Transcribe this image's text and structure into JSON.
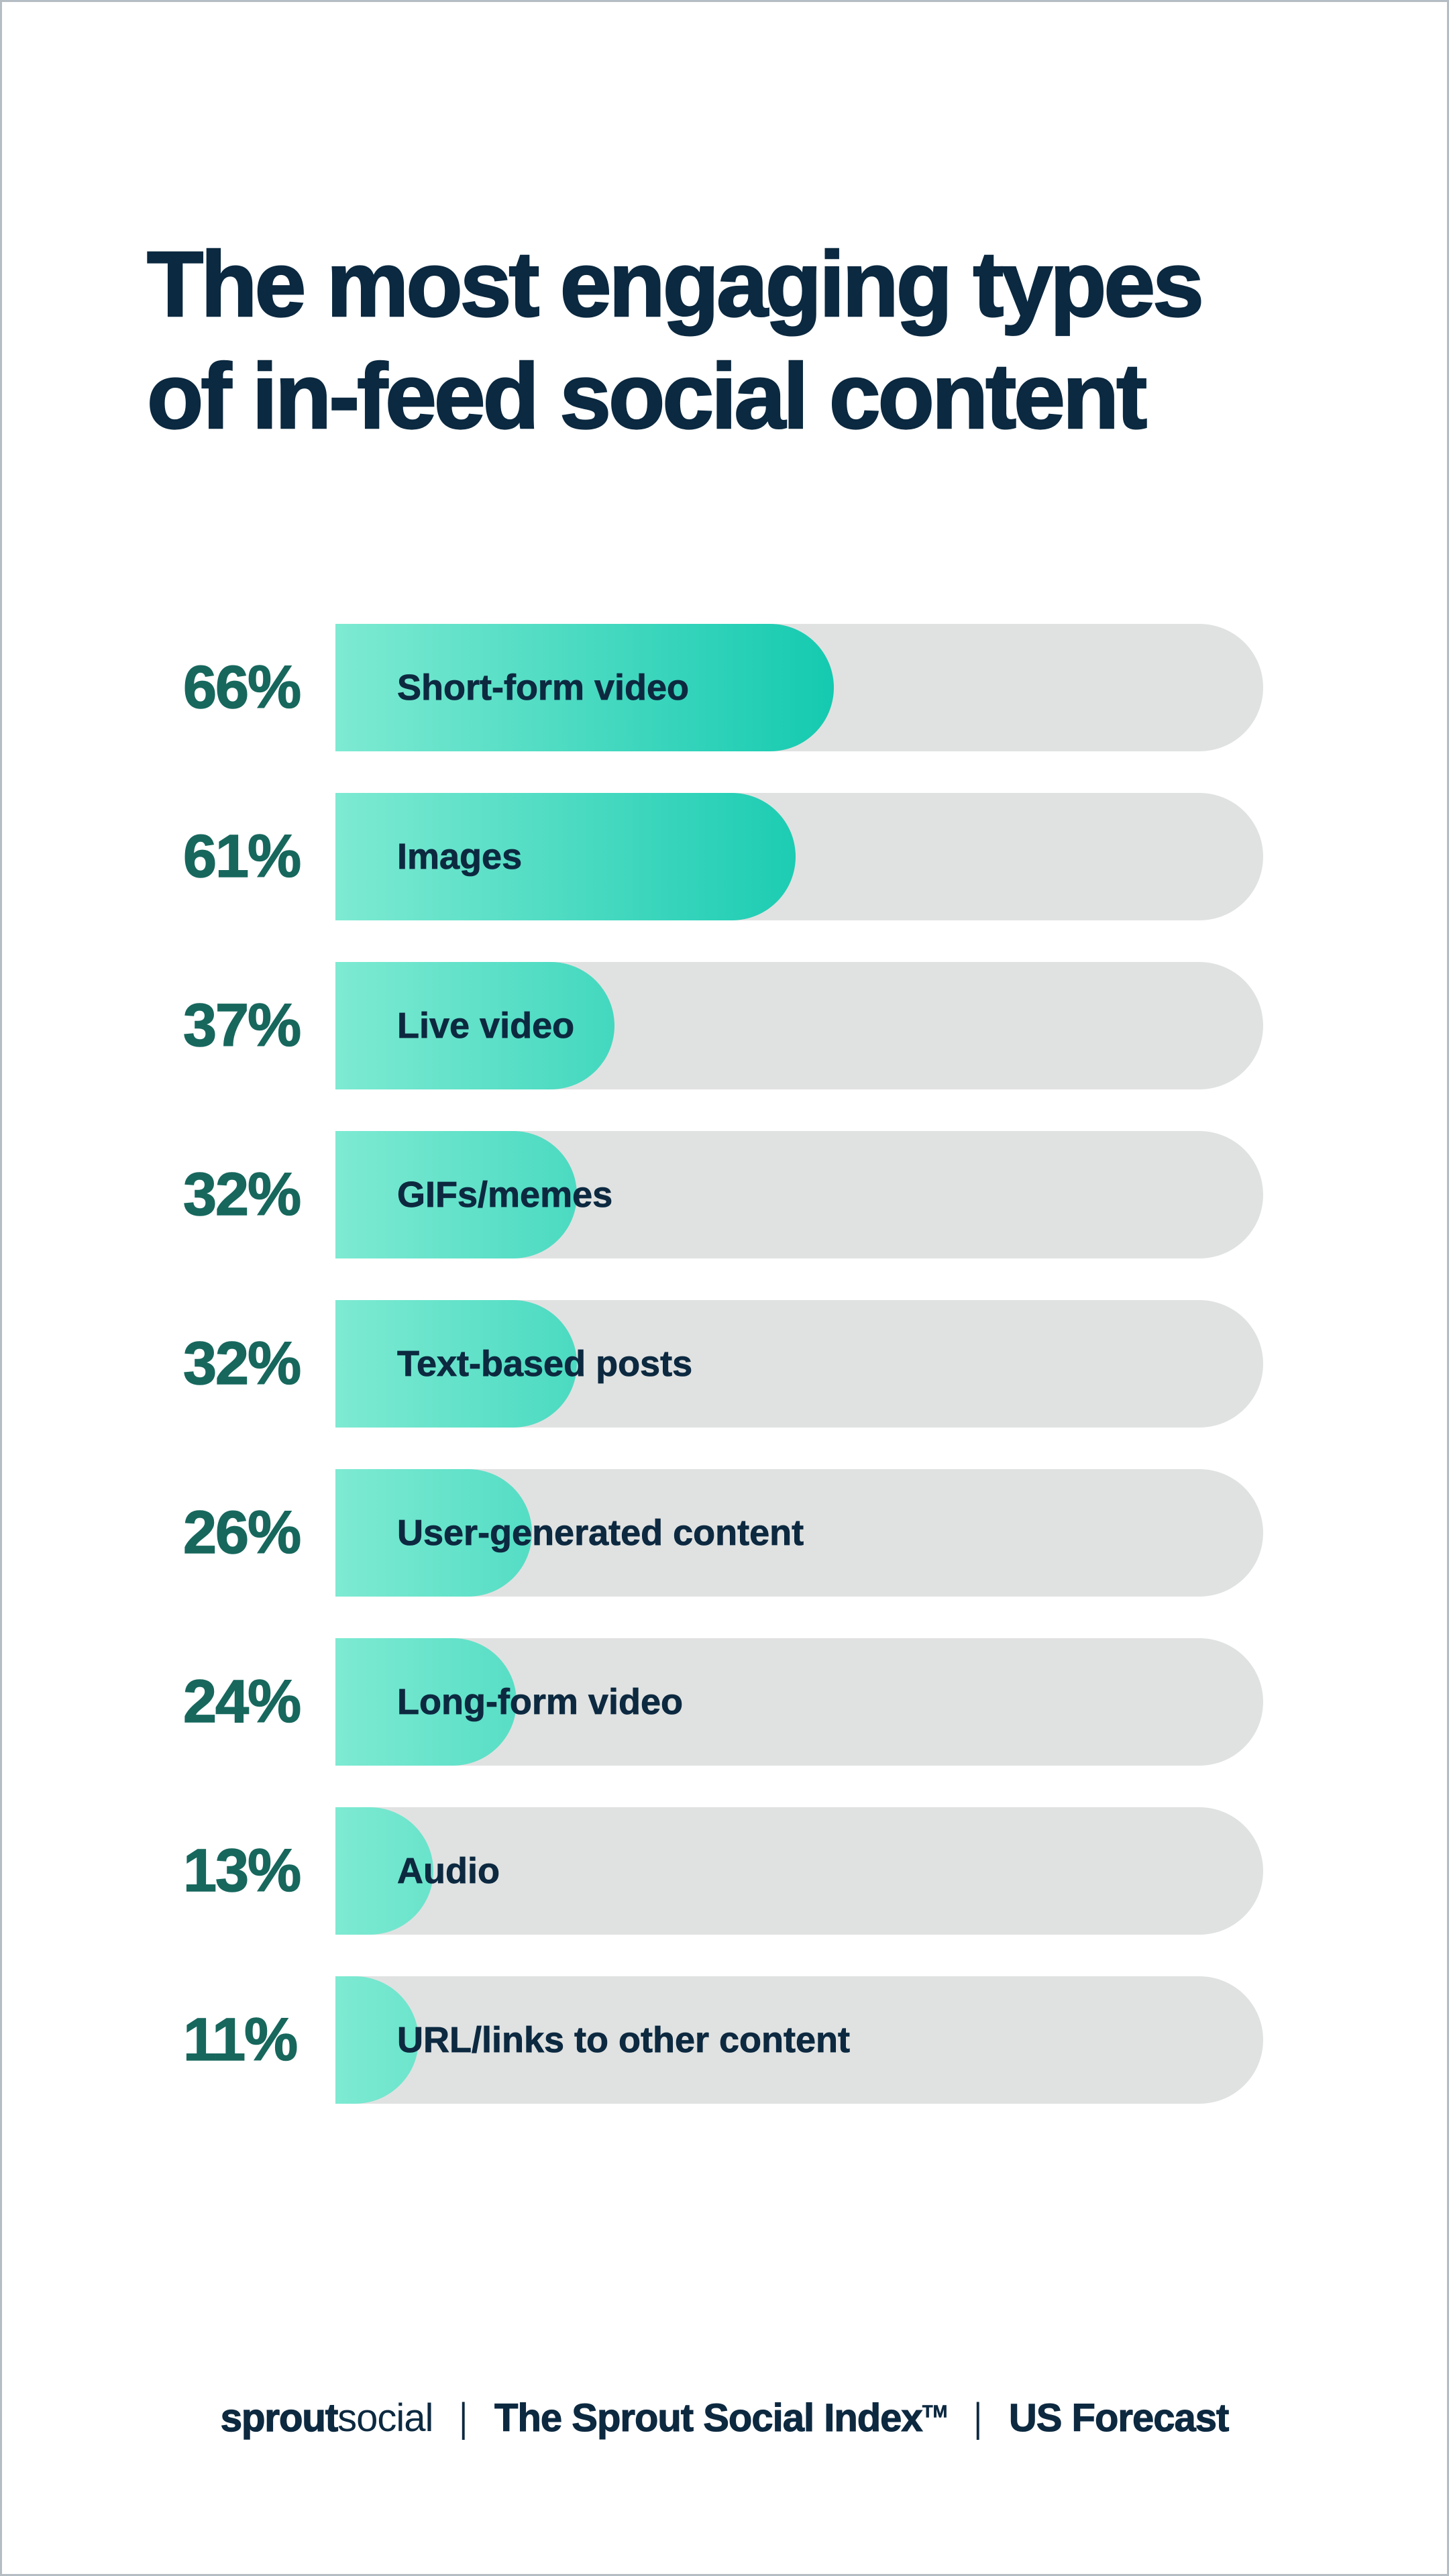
{
  "title": {
    "line1": "The most engaging types",
    "line2": "of in-feed social content"
  },
  "chart_data": {
    "type": "bar",
    "orientation": "horizontal",
    "title": "The most engaging types of in-feed social content",
    "categories": [
      "Short-form video",
      "Images",
      "Live video",
      "GIFs/memes",
      "Text-based posts",
      "User-generated content",
      "Long-form video",
      "Audio",
      "URL/links to other content"
    ],
    "values": [
      66,
      61,
      37,
      32,
      32,
      26,
      24,
      13,
      11
    ],
    "value_suffix": "%",
    "xlabel": "",
    "ylabel": "",
    "xlim": [
      0,
      123
    ],
    "grid": false,
    "legend": false,
    "bar_scale_pct_of_track_per_unit": 0.8135,
    "gradient_reference_value": 66,
    "colors": {
      "bar_gradient_start": "#7EEAD2",
      "bar_gradient_end": "#14CAB0",
      "track": "#E0E2E1",
      "value_label": "#17675D",
      "category_label": "#0C2940",
      "title": "#0B2940"
    }
  },
  "footer": {
    "brand_bold": "sprout",
    "brand_light": "social",
    "divider": "|",
    "index_label": "The Sprout Social Index",
    "trademark": "TM",
    "region_label": "US Forecast"
  }
}
